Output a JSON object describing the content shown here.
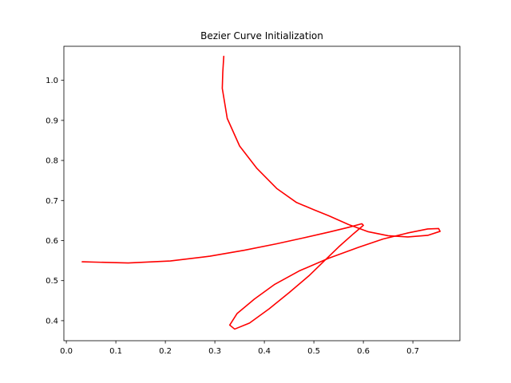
{
  "chart_data": {
    "type": "line",
    "title": "Bezier Curve Initialization",
    "xlabel": "",
    "ylabel": "",
    "xlim": [
      -0.005,
      0.795
    ],
    "ylim": [
      0.35,
      1.085
    ],
    "xticks": [
      0.0,
      0.1,
      0.2,
      0.3,
      0.4,
      0.5,
      0.6,
      0.7
    ],
    "xtick_labels": [
      "0.0",
      "0.1",
      "0.2",
      "0.3",
      "0.4",
      "0.5",
      "0.6",
      "0.7"
    ],
    "yticks": [
      0.4,
      0.5,
      0.6,
      0.7,
      0.8,
      0.9,
      1.0
    ],
    "ytick_labels": [
      "0.4",
      "0.5",
      "0.6",
      "0.7",
      "0.8",
      "0.9",
      "1.0"
    ],
    "grid": false,
    "color": "#ff0000",
    "series": [
      {
        "x": [
          0.032,
          0.125,
          0.21,
          0.29,
          0.36,
          0.425,
          0.48,
          0.53,
          0.57,
          0.597,
          0.6,
          0.58,
          0.55,
          0.52,
          0.49,
          0.45,
          0.41,
          0.37,
          0.34,
          0.33,
          0.345,
          0.38,
          0.42,
          0.47,
          0.53,
          0.59,
          0.64,
          0.69,
          0.73,
          0.752,
          0.755,
          0.73,
          0.69,
          0.65,
          0.61,
          0.57,
          0.53,
          0.5,
          0.465,
          0.425,
          0.385,
          0.35,
          0.325,
          0.315,
          0.316,
          0.318
        ],
        "y": [
          0.547,
          0.544,
          0.549,
          0.561,
          0.576,
          0.592,
          0.607,
          0.621,
          0.633,
          0.642,
          0.638,
          0.617,
          0.584,
          0.548,
          0.512,
          0.47,
          0.43,
          0.394,
          0.379,
          0.389,
          0.418,
          0.454,
          0.49,
          0.524,
          0.556,
          0.583,
          0.604,
          0.619,
          0.629,
          0.63,
          0.623,
          0.613,
          0.609,
          0.612,
          0.622,
          0.64,
          0.662,
          0.677,
          0.695,
          0.73,
          0.78,
          0.836,
          0.905,
          0.98,
          1.02,
          1.06
        ]
      }
    ]
  }
}
